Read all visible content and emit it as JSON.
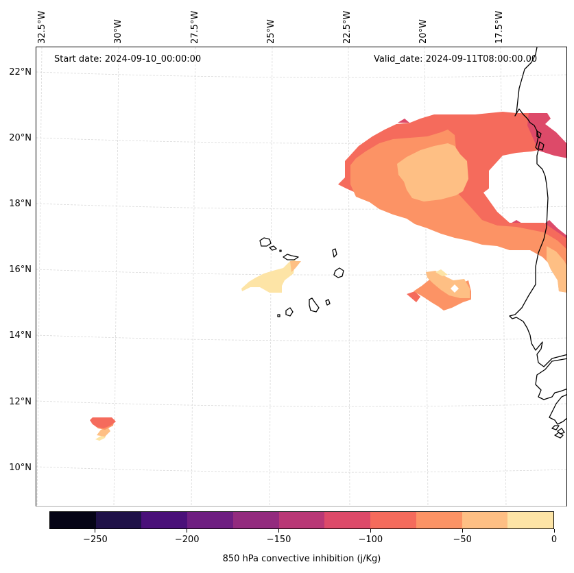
{
  "annotations": {
    "start_date": "Start date: 2024-09-10_00:00:00",
    "valid_date": "Valid_date: 2024-09-11T08:00:00.00"
  },
  "map": {
    "projection": "lambert conformal",
    "lon_labels": [
      "32.5°W",
      "30°W",
      "27.5°W",
      "25°W",
      "22.5°W",
      "20°W",
      "17.5°W"
    ],
    "lat_labels": [
      "22°N",
      "20°N",
      "18°N",
      "16°N",
      "14°N",
      "12°N",
      "10°N"
    ],
    "lon_range": [
      -32.6,
      -15.4
    ],
    "lat_range": [
      8.8,
      22.8
    ],
    "regions": [
      {
        "name": "northeast-band",
        "description": "Large CIN band off Mauritania/Western Sahara coast",
        "levels": [
          -125,
          -100,
          -75,
          -50
        ]
      },
      {
        "name": "cape-verde-north-plume",
        "description": "Weak CIN west of Sal/Boa Vista",
        "levels": [
          -50,
          -25
        ]
      },
      {
        "name": "east-cape-verde-patch",
        "description": "Patch east of Cape Verde",
        "levels": [
          -100,
          -75,
          -50
        ]
      },
      {
        "name": "southwest-blob",
        "description": "Small blob near 11N 30.5W",
        "levels": [
          -100,
          -75,
          -50,
          -25
        ]
      }
    ]
  },
  "colorbar": {
    "title": "850 hPa convective inhibition (j/Kg)",
    "min": -275,
    "max": 0,
    "step": 25,
    "colors": [
      "#050416",
      "#1f1148",
      "#4a1079",
      "#6e1e81",
      "#932b7e",
      "#b93876",
      "#dd4a69",
      "#f56b5c",
      "#fc9365",
      "#febf84",
      "#fde4a6"
    ],
    "ticks": [
      -250,
      -200,
      -150,
      -100,
      -50,
      0
    ],
    "tick_labels": [
      "−250",
      "−200",
      "−150",
      "−100",
      "−50",
      "0"
    ]
  }
}
